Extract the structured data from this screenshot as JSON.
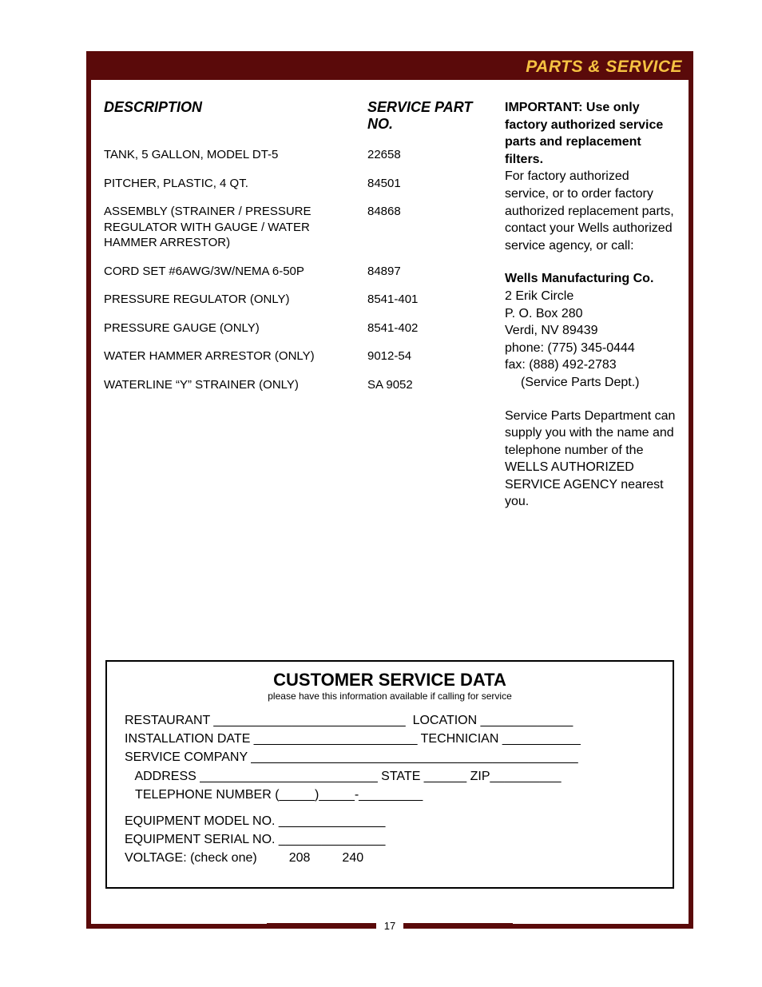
{
  "colors": {
    "frame": "#5a0a0a",
    "headerText": "#f5c242",
    "text": "#000000",
    "bg": "#ffffff"
  },
  "header": {
    "title": "PARTS & SERVICE"
  },
  "partsTable": {
    "head": {
      "desc": "DESCRIPTION",
      "part": "SERVICE PART NO."
    },
    "rows": [
      {
        "desc": "TANK, 5 GALLON, MODEL DT-5",
        "part": "22658"
      },
      {
        "desc": "PITCHER, PLASTIC, 4 QT.",
        "part": "84501"
      },
      {
        "desc": "ASSEMBLY (STRAINER / PRESSURE REGULATOR WITH GAUGE / WATER HAMMER ARRESTOR)",
        "part": "84868"
      },
      {
        "desc": "CORD SET #6AWG/3W/NEMA 6-50P",
        "part": "84897"
      },
      {
        "desc": "PRESSURE REGULATOR (ONLY)",
        "part": "8541-401"
      },
      {
        "desc": "PRESSURE GAUGE (ONLY)",
        "part": "8541-402"
      },
      {
        "desc": "WATER HAMMER ARRESTOR (ONLY)",
        "part": "9012-54"
      },
      {
        "desc": "WATERLINE “Y” STRAINER (ONLY)",
        "part": "SA 9052"
      }
    ]
  },
  "notice": {
    "importantLabel": "IMPORTANT:",
    "importantText": "Use only factory authorized service parts and replacement filters.",
    "body": "For factory authorized service, or to order factory authorized replacement parts, contact your Wells authorized service agency, or call:",
    "company": "Wells Manufacturing Co.",
    "addr1": "2 Erik Circle",
    "addr2": "P. O. Box 280",
    "addr3": "Verdi, NV  89439",
    "phone": "phone:  (775) 345-0444",
    "fax": "fax:      (888) 492-2783",
    "dept": "(Service Parts Dept.)",
    "tail": "Service Parts Department can supply you with the name and telephone number of the WELLS AUTHORIZED SERVICE AGENCY nearest you."
  },
  "serviceBox": {
    "title": "CUSTOMER SERVICE DATA",
    "sub": "please have this information available if calling for service",
    "labels": {
      "restaurant": "RESTAURANT",
      "location": "LOCATION",
      "installDate": "INSTALLATION DATE",
      "technician": "TECHNICIAN",
      "serviceCompany": "SERVICE COMPANY",
      "address": "ADDRESS",
      "state": "STATE",
      "zip": "ZIP",
      "telephone": "TELEPHONE NUMBER",
      "model": "EQUIPMENT MODEL NO.",
      "serial": "EQUIPMENT SERIAL NO.",
      "voltage": "VOLTAGE: (check one)",
      "v1": "208",
      "v2": "240"
    }
  },
  "pageNumber": "17"
}
